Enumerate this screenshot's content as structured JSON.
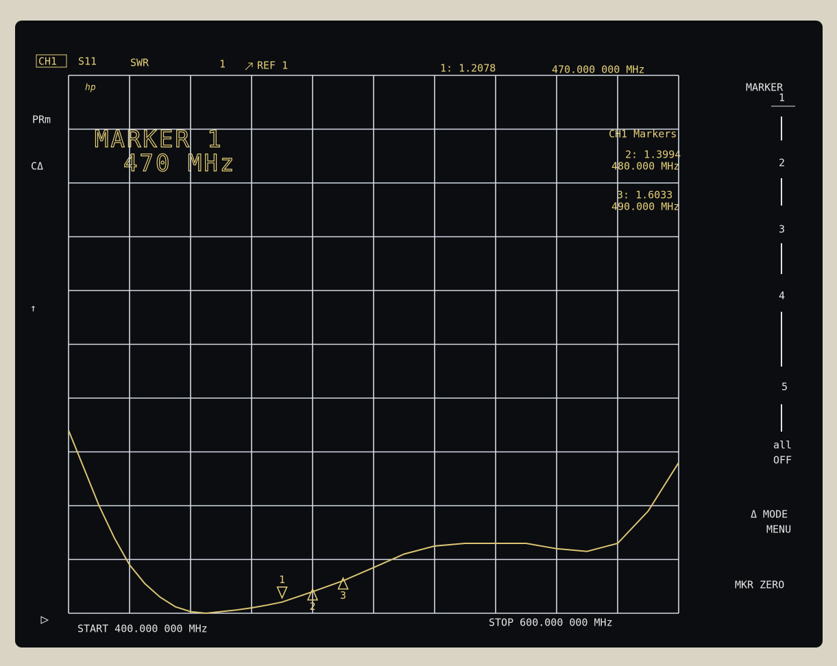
{
  "header": {
    "channel": "CH1",
    "parameter": "S11",
    "format": "SWR",
    "scale": "1",
    "reference": "REF 1",
    "active_marker": "1: 1.2078",
    "active_frequency": "470.000 000 MHz"
  },
  "logo": "hp",
  "left_labels": [
    "PRm",
    "CΔ",
    "↑"
  ],
  "marker_banner": {
    "title": "MARKER 1",
    "frequency": "470 MHz"
  },
  "marker_list": {
    "title": "CH1 Markers",
    "entries": [
      {
        "value": "2: 1.3994",
        "frequency": "480.000 MHz"
      },
      {
        "value": "3: 1.6033",
        "frequency": "490.000 MHz"
      }
    ]
  },
  "softkeys": {
    "title": "MARKER",
    "keys": [
      "1",
      "2",
      "3",
      "4",
      "5"
    ],
    "all_off": [
      "all",
      "OFF"
    ],
    "mode_menu": [
      "Δ MODE",
      "MENU"
    ],
    "zero": "MKR ZERO"
  },
  "footer": {
    "start": "START 400.000 000 MHz",
    "stop": "STOP 600.000 000 MHz"
  },
  "trace": {
    "color": "#dcc574",
    "xlim": [
      400,
      600
    ],
    "ylim": [
      1,
      11
    ],
    "x": [
      400,
      405,
      410,
      415,
      420,
      425,
      430,
      435,
      440,
      445,
      450,
      455,
      460,
      465,
      470,
      480,
      490,
      500,
      510,
      520,
      530,
      540,
      550,
      560,
      570,
      580,
      590,
      600
    ],
    "y": [
      4.4,
      3.7,
      3.0,
      2.4,
      1.9,
      1.55,
      1.3,
      1.12,
      1.03,
      1.0,
      1.03,
      1.06,
      1.1,
      1.15,
      1.2078,
      1.3994,
      1.6033,
      1.85,
      2.1,
      2.25,
      2.3,
      2.3,
      2.3,
      2.2,
      2.15,
      2.3,
      2.9,
      3.8
    ]
  },
  "trace_markers": [
    {
      "label": "1",
      "x": 470,
      "y": 1.2078
    },
    {
      "label": "2",
      "x": 480,
      "y": 1.3994
    },
    {
      "label": "3",
      "x": 490,
      "y": 1.6033
    }
  ]
}
